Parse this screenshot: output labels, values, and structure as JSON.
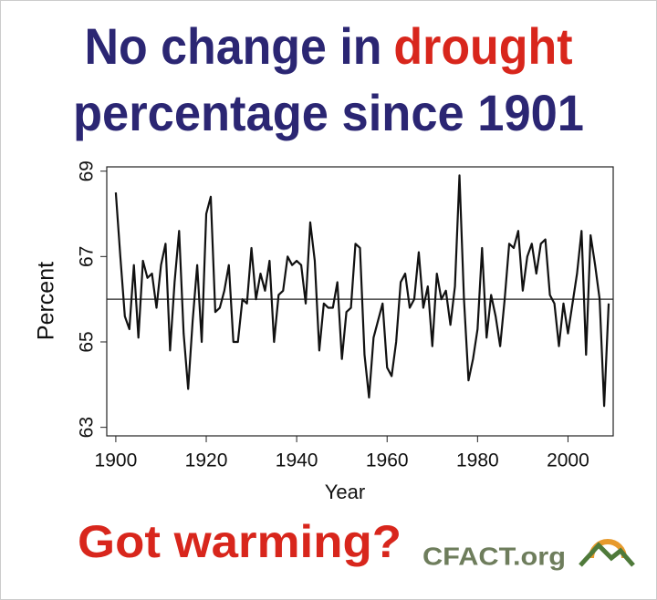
{
  "chart_data": {
    "type": "line",
    "title_lines": [
      [
        {
          "text": "No change in",
          "color": "#2b2673"
        },
        {
          "text": "drought",
          "color": "#d8261c"
        }
      ],
      [
        {
          "text": "percentage since 1901",
          "color": "#2b2673"
        }
      ]
    ],
    "xlabel": "Year",
    "ylabel": "Percent",
    "x": [
      1900,
      1901,
      1902,
      1903,
      1904,
      1905,
      1906,
      1907,
      1908,
      1909,
      1910,
      1911,
      1912,
      1913,
      1914,
      1915,
      1916,
      1917,
      1918,
      1919,
      1920,
      1921,
      1922,
      1923,
      1924,
      1925,
      1926,
      1927,
      1928,
      1929,
      1930,
      1931,
      1932,
      1933,
      1934,
      1935,
      1936,
      1937,
      1938,
      1939,
      1940,
      1941,
      1942,
      1943,
      1944,
      1945,
      1946,
      1947,
      1948,
      1949,
      1950,
      1951,
      1952,
      1953,
      1954,
      1955,
      1956,
      1957,
      1958,
      1959,
      1960,
      1961,
      1962,
      1963,
      1964,
      1965,
      1966,
      1967,
      1968,
      1969,
      1970,
      1971,
      1972,
      1973,
      1974,
      1975,
      1976,
      1977,
      1978,
      1979,
      1980,
      1981,
      1982,
      1983,
      1984,
      1985,
      1986,
      1987,
      1988,
      1989,
      1990,
      1991,
      1992,
      1993,
      1994,
      1995,
      1996,
      1997,
      1998,
      1999,
      2000,
      2001,
      2002,
      2003,
      2004,
      2005,
      2006,
      2007,
      2008,
      2009
    ],
    "values": [
      68.5,
      67.0,
      65.6,
      65.3,
      66.8,
      65.1,
      66.9,
      66.5,
      66.6,
      65.8,
      66.8,
      67.3,
      64.8,
      66.4,
      67.6,
      65.2,
      63.9,
      65.5,
      66.8,
      65.0,
      68.0,
      68.4,
      65.7,
      65.8,
      66.2,
      66.8,
      65.0,
      65.0,
      66.0,
      65.9,
      67.2,
      66.0,
      66.6,
      66.2,
      66.9,
      65.0,
      66.1,
      66.2,
      67.0,
      66.8,
      66.9,
      66.8,
      65.9,
      67.8,
      66.9,
      64.8,
      65.9,
      65.8,
      65.8,
      66.4,
      64.6,
      65.7,
      65.8,
      67.3,
      67.2,
      64.7,
      63.7,
      65.1,
      65.5,
      65.9,
      64.4,
      64.2,
      65.0,
      66.4,
      66.6,
      65.8,
      66.0,
      67.1,
      65.8,
      66.3,
      64.9,
      66.6,
      66.0,
      66.2,
      65.4,
      66.3,
      68.9,
      66.0,
      64.1,
      64.6,
      65.3,
      67.2,
      65.1,
      66.1,
      65.6,
      64.9,
      66.0,
      67.3,
      67.2,
      67.6,
      66.2,
      67.0,
      67.3,
      66.6,
      67.3,
      67.4,
      66.1,
      65.9,
      64.9,
      65.9,
      65.2,
      65.9,
      66.6,
      67.6,
      64.7,
      67.5,
      66.8,
      66.0,
      63.5,
      65.9
    ],
    "color": "#111111",
    "hline": 66.0,
    "xlim": [
      1898,
      2010
    ],
    "ylim": [
      62.8,
      69.1
    ],
    "xticks": [
      1900,
      1920,
      1940,
      1960,
      1980,
      2000
    ],
    "yticks": [
      63,
      65,
      67,
      69
    ]
  },
  "footer": {
    "slogan": "Got warming?",
    "brand": "CFACT.org"
  }
}
